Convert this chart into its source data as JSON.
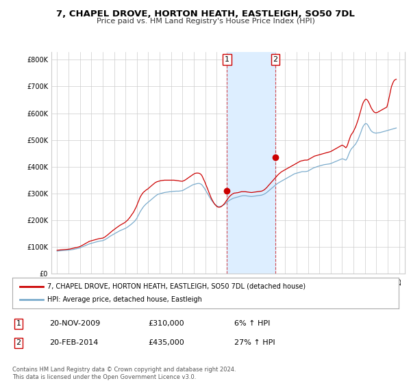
{
  "title": "7, CHAPEL DROVE, HORTON HEATH, EASTLEIGH, SO50 7DL",
  "subtitle": "Price paid vs. HM Land Registry's House Price Index (HPI)",
  "title_fontsize": 9.5,
  "subtitle_fontsize": 8,
  "ylabel_ticks": [
    "£0",
    "£100K",
    "£200K",
    "£300K",
    "£400K",
    "£500K",
    "£600K",
    "£700K",
    "£800K"
  ],
  "ytick_values": [
    0,
    100000,
    200000,
    300000,
    400000,
    500000,
    600000,
    700000,
    800000
  ],
  "ylim": [
    0,
    830000
  ],
  "xlim_start": 1994.5,
  "xlim_end": 2025.5,
  "transaction1_x": 2009.9,
  "transaction1_y": 310000,
  "transaction2_x": 2014.15,
  "transaction2_y": 435000,
  "shade_color": "#ddeeff",
  "line_color_property": "#cc0000",
  "line_color_hpi": "#7aabcc",
  "marker_color": "#cc0000",
  "marker_box_color": "#cc0000",
  "legend_label_property": "7, CHAPEL DROVE, HORTON HEATH, EASTLEIGH, SO50 7DL (detached house)",
  "legend_label_hpi": "HPI: Average price, detached house, Eastleigh",
  "table_row1": [
    "1",
    "20-NOV-2009",
    "£310,000",
    "6% ↑ HPI"
  ],
  "table_row2": [
    "2",
    "20-FEB-2014",
    "£435,000",
    "27% ↑ HPI"
  ],
  "footnote": "Contains HM Land Registry data © Crown copyright and database right 2024.\nThis data is licensed under the Open Government Licence v3.0.",
  "background_color": "#ffffff",
  "grid_color": "#cccccc",
  "hpi_monthly_x": [
    1995.0,
    1995.08,
    1995.17,
    1995.25,
    1995.33,
    1995.42,
    1995.5,
    1995.58,
    1995.67,
    1995.75,
    1995.83,
    1995.92,
    1996.0,
    1996.08,
    1996.17,
    1996.25,
    1996.33,
    1996.42,
    1996.5,
    1996.58,
    1996.67,
    1996.75,
    1996.83,
    1996.92,
    1997.0,
    1997.08,
    1997.17,
    1997.25,
    1997.33,
    1997.42,
    1997.5,
    1997.58,
    1997.67,
    1997.75,
    1997.83,
    1997.92,
    1998.0,
    1998.08,
    1998.17,
    1998.25,
    1998.33,
    1998.42,
    1998.5,
    1998.58,
    1998.67,
    1998.75,
    1998.83,
    1998.92,
    1999.0,
    1999.08,
    1999.17,
    1999.25,
    1999.33,
    1999.42,
    1999.5,
    1999.58,
    1999.67,
    1999.75,
    1999.83,
    1999.92,
    2000.0,
    2000.08,
    2000.17,
    2000.25,
    2000.33,
    2000.42,
    2000.5,
    2000.58,
    2000.67,
    2000.75,
    2000.83,
    2000.92,
    2001.0,
    2001.08,
    2001.17,
    2001.25,
    2001.33,
    2001.42,
    2001.5,
    2001.58,
    2001.67,
    2001.75,
    2001.83,
    2001.92,
    2002.0,
    2002.08,
    2002.17,
    2002.25,
    2002.33,
    2002.42,
    2002.5,
    2002.58,
    2002.67,
    2002.75,
    2002.83,
    2002.92,
    2003.0,
    2003.08,
    2003.17,
    2003.25,
    2003.33,
    2003.42,
    2003.5,
    2003.58,
    2003.67,
    2003.75,
    2003.83,
    2003.92,
    2004.0,
    2004.08,
    2004.17,
    2004.25,
    2004.33,
    2004.42,
    2004.5,
    2004.58,
    2004.67,
    2004.75,
    2004.83,
    2004.92,
    2005.0,
    2005.08,
    2005.17,
    2005.25,
    2005.33,
    2005.42,
    2005.5,
    2005.58,
    2005.67,
    2005.75,
    2005.83,
    2005.92,
    2006.0,
    2006.08,
    2006.17,
    2006.25,
    2006.33,
    2006.42,
    2006.5,
    2006.58,
    2006.67,
    2006.75,
    2006.83,
    2006.92,
    2007.0,
    2007.08,
    2007.17,
    2007.25,
    2007.33,
    2007.42,
    2007.5,
    2007.58,
    2007.67,
    2007.75,
    2007.83,
    2007.92,
    2008.0,
    2008.08,
    2008.17,
    2008.25,
    2008.33,
    2008.42,
    2008.5,
    2008.58,
    2008.67,
    2008.75,
    2008.83,
    2008.92,
    2009.0,
    2009.08,
    2009.17,
    2009.25,
    2009.33,
    2009.42,
    2009.5,
    2009.58,
    2009.67,
    2009.75,
    2009.83,
    2009.92,
    2010.0,
    2010.08,
    2010.17,
    2010.25,
    2010.33,
    2010.42,
    2010.5,
    2010.58,
    2010.67,
    2010.75,
    2010.83,
    2010.92,
    2011.0,
    2011.08,
    2011.17,
    2011.25,
    2011.33,
    2011.42,
    2011.5,
    2011.58,
    2011.67,
    2011.75,
    2011.83,
    2011.92,
    2012.0,
    2012.08,
    2012.17,
    2012.25,
    2012.33,
    2012.42,
    2012.5,
    2012.58,
    2012.67,
    2012.75,
    2012.83,
    2012.92,
    2013.0,
    2013.08,
    2013.17,
    2013.25,
    2013.33,
    2013.42,
    2013.5,
    2013.58,
    2013.67,
    2013.75,
    2013.83,
    2013.92,
    2014.0,
    2014.08,
    2014.17,
    2014.25,
    2014.33,
    2014.42,
    2014.5,
    2014.58,
    2014.67,
    2014.75,
    2014.83,
    2014.92,
    2015.0,
    2015.08,
    2015.17,
    2015.25,
    2015.33,
    2015.42,
    2015.5,
    2015.58,
    2015.67,
    2015.75,
    2015.83,
    2015.92,
    2016.0,
    2016.08,
    2016.17,
    2016.25,
    2016.33,
    2016.42,
    2016.5,
    2016.58,
    2016.67,
    2016.75,
    2016.83,
    2016.92,
    2017.0,
    2017.08,
    2017.17,
    2017.25,
    2017.33,
    2017.42,
    2017.5,
    2017.58,
    2017.67,
    2017.75,
    2017.83,
    2017.92,
    2018.0,
    2018.08,
    2018.17,
    2018.25,
    2018.33,
    2018.42,
    2018.5,
    2018.58,
    2018.67,
    2018.75,
    2018.83,
    2018.92,
    2019.0,
    2019.08,
    2019.17,
    2019.25,
    2019.33,
    2019.42,
    2019.5,
    2019.58,
    2019.67,
    2019.75,
    2019.83,
    2019.92,
    2020.0,
    2020.08,
    2020.17,
    2020.25,
    2020.33,
    2020.42,
    2020.5,
    2020.58,
    2020.67,
    2020.75,
    2020.83,
    2020.92,
    2021.0,
    2021.08,
    2021.17,
    2021.25,
    2021.33,
    2021.42,
    2021.5,
    2021.58,
    2021.67,
    2021.75,
    2021.83,
    2021.92,
    2022.0,
    2022.08,
    2022.17,
    2022.25,
    2022.33,
    2022.42,
    2022.5,
    2022.58,
    2022.67,
    2022.75,
    2022.83,
    2022.92,
    2023.0,
    2023.08,
    2023.17,
    2023.25,
    2023.33,
    2023.42,
    2023.5,
    2023.58,
    2023.67,
    2023.75,
    2023.83,
    2023.92,
    2024.0,
    2024.08,
    2024.17,
    2024.25,
    2024.33,
    2024.42,
    2024.5,
    2024.58,
    2024.67,
    2024.75
  ],
  "hpi_monthly_y": [
    85000,
    85500,
    86000,
    86200,
    86500,
    86800,
    87000,
    87200,
    87500,
    87800,
    88000,
    88300,
    88600,
    89000,
    89500,
    90000,
    90500,
    91200,
    92000,
    92800,
    93500,
    94200,
    95000,
    96000,
    97000,
    98500,
    100000,
    101500,
    103000,
    104500,
    106000,
    107500,
    109000,
    110500,
    112000,
    113000,
    114000,
    115000,
    116000,
    117000,
    118000,
    119000,
    120000,
    121000,
    122000,
    122500,
    123000,
    123500,
    124000,
    125500,
    127000,
    129000,
    131000,
    133500,
    136000,
    138500,
    141000,
    143000,
    145000,
    147000,
    149000,
    151000,
    153000,
    155000,
    157000,
    159000,
    161000,
    162500,
    164000,
    165500,
    167000,
    168500,
    170000,
    172000,
    174500,
    177000,
    179500,
    182000,
    185000,
    188000,
    191000,
    194500,
    198000,
    203000,
    208000,
    215000,
    222000,
    229000,
    235000,
    241000,
    246000,
    251000,
    255000,
    259000,
    262000,
    265000,
    268000,
    271000,
    274000,
    277000,
    280000,
    283000,
    286000,
    289000,
    292000,
    295000,
    297000,
    298000,
    299000,
    300000,
    301000,
    302000,
    303000,
    304000,
    304500,
    305000,
    305500,
    306000,
    306500,
    307000,
    307000,
    307500,
    308000,
    308500,
    308500,
    309000,
    309000,
    309000,
    309000,
    309500,
    310000,
    310500,
    311000,
    313000,
    315000,
    317000,
    319000,
    321000,
    323000,
    325000,
    327000,
    329000,
    331000,
    333000,
    334000,
    335000,
    336000,
    337000,
    337500,
    338000,
    337500,
    336000,
    334000,
    330000,
    325000,
    320000,
    314000,
    308000,
    302000,
    296000,
    290000,
    284000,
    278000,
    273000,
    268000,
    264000,
    260000,
    257000,
    254000,
    252000,
    251000,
    251000,
    252000,
    253000,
    255000,
    257000,
    259000,
    262000,
    265000,
    268000,
    271000,
    274000,
    276000,
    278000,
    280000,
    282000,
    283000,
    284000,
    285000,
    286000,
    287000,
    288000,
    289000,
    290000,
    291000,
    291500,
    292000,
    292000,
    292000,
    291500,
    291000,
    290500,
    290000,
    289500,
    289000,
    289000,
    289500,
    290000,
    290500,
    291000,
    291500,
    292000,
    292500,
    293000,
    293500,
    294000,
    295000,
    296500,
    298000,
    300000,
    302000,
    305000,
    308000,
    311000,
    314000,
    317000,
    320000,
    323000,
    326000,
    329000,
    332000,
    335000,
    337500,
    340000,
    342000,
    344000,
    346000,
    348000,
    350000,
    352000,
    354000,
    356000,
    358000,
    360000,
    362000,
    364000,
    366000,
    368000,
    370000,
    372000,
    374000,
    375000,
    376000,
    377000,
    378000,
    379000,
    380000,
    381000,
    382000,
    382000,
    382000,
    382000,
    382500,
    383000,
    384000,
    386000,
    388000,
    390000,
    392000,
    394000,
    396000,
    397000,
    398500,
    400000,
    401000,
    402000,
    403000,
    404000,
    405000,
    406000,
    407000,
    408000,
    408500,
    409000,
    409500,
    410000,
    410500,
    411000,
    412000,
    413500,
    415000,
    416500,
    418000,
    419500,
    421000,
    422500,
    424000,
    425500,
    427000,
    428500,
    430000,
    429000,
    428000,
    426000,
    425000,
    430000,
    438000,
    447000,
    456000,
    463000,
    468000,
    472000,
    476000,
    480000,
    484000,
    490000,
    496000,
    504000,
    513000,
    522000,
    532000,
    542000,
    550000,
    556000,
    560000,
    562000,
    560000,
    556000,
    550000,
    543000,
    537000,
    533000,
    530000,
    528000,
    527000,
    526000,
    526000,
    526500,
    527000,
    527500,
    528000,
    529000,
    530000,
    531000,
    532000,
    533000,
    534000,
    535000,
    536000,
    537000,
    538000,
    539000,
    540000,
    541000,
    542000,
    543000,
    544000,
    545000
  ],
  "prop_monthly_y": [
    88000,
    88500,
    89000,
    89300,
    89700,
    90000,
    90200,
    90500,
    90800,
    91000,
    91300,
    91700,
    92000,
    92500,
    93200,
    94000,
    94800,
    95700,
    96500,
    97300,
    98000,
    98800,
    99700,
    100700,
    102000,
    103500,
    105500,
    107500,
    109500,
    111500,
    113500,
    115500,
    117500,
    119500,
    121500,
    122500,
    123500,
    124500,
    125500,
    126500,
    127500,
    128500,
    129500,
    130500,
    131500,
    132000,
    132500,
    133000,
    133500,
    135000,
    137000,
    139500,
    142000,
    145000,
    148000,
    151000,
    154000,
    157000,
    160000,
    163000,
    166000,
    168500,
    171000,
    173500,
    176000,
    178500,
    181000,
    183000,
    185000,
    187000,
    189000,
    191000,
    194000,
    197000,
    200000,
    204000,
    208000,
    213000,
    218000,
    223000,
    228000,
    234000,
    241000,
    248000,
    256000,
    265000,
    274000,
    283000,
    290000,
    296000,
    301000,
    305000,
    308000,
    311000,
    314000,
    316000,
    319000,
    322000,
    325000,
    328000,
    331000,
    334000,
    337000,
    340000,
    342000,
    344000,
    345000,
    346000,
    347000,
    348000,
    348500,
    349000,
    349500,
    350000,
    350000,
    350000,
    350000,
    350000,
    350000,
    350000,
    350000,
    350000,
    350000,
    350000,
    349500,
    349000,
    348500,
    348000,
    347500,
    347000,
    346500,
    346000,
    346000,
    347500,
    349000,
    351000,
    353500,
    356000,
    358500,
    361000,
    363500,
    366000,
    368500,
    371000,
    373000,
    375000,
    376000,
    376500,
    376500,
    376000,
    375000,
    373000,
    369000,
    363000,
    355000,
    347000,
    339000,
    330000,
    321000,
    312000,
    303000,
    294000,
    285000,
    278000,
    271000,
    265000,
    260000,
    256000,
    252000,
    250000,
    249000,
    249000,
    250000,
    252000,
    255000,
    258000,
    262000,
    267000,
    272000,
    277000,
    282000,
    287000,
    291000,
    294000,
    297000,
    299000,
    301000,
    302000,
    302000,
    303000,
    303000,
    304000,
    305000,
    306000,
    307000,
    307000,
    307000,
    307000,
    307000,
    306500,
    306000,
    305500,
    305000,
    304500,
    304000,
    304000,
    304500,
    305000,
    305500,
    306000,
    306500,
    307000,
    307500,
    308000,
    308500,
    309000,
    310000,
    312000,
    314000,
    317000,
    320000,
    324000,
    328000,
    332000,
    336000,
    340000,
    344000,
    348000,
    352000,
    356000,
    360000,
    364000,
    368000,
    372000,
    375000,
    378000,
    381000,
    383000,
    385000,
    387000,
    389000,
    391000,
    393000,
    395000,
    397000,
    399000,
    401000,
    403000,
    405000,
    407000,
    409000,
    411000,
    413000,
    415000,
    417000,
    419000,
    421000,
    422000,
    423000,
    424000,
    424500,
    425000,
    425000,
    425000,
    426000,
    428000,
    430000,
    432000,
    434000,
    436000,
    438000,
    440000,
    441000,
    442000,
    443000,
    444000,
    445000,
    446000,
    447000,
    448000,
    449000,
    450000,
    451000,
    452000,
    453000,
    454000,
    455000,
    456000,
    457000,
    459000,
    461000,
    463000,
    465000,
    467000,
    469000,
    471000,
    473000,
    475000,
    477000,
    479000,
    481000,
    479000,
    477000,
    474000,
    471000,
    476000,
    485000,
    496000,
    507000,
    516000,
    522000,
    527000,
    533000,
    540000,
    548000,
    557000,
    567000,
    578000,
    590000,
    603000,
    616000,
    628000,
    638000,
    645000,
    650000,
    653000,
    651000,
    647000,
    641000,
    633000,
    625000,
    618000,
    612000,
    607000,
    604000,
    602000,
    602000,
    603000,
    605000,
    607000,
    609000,
    611000,
    613000,
    615000,
    617000,
    619000,
    621000,
    623000,
    635000,
    650000,
    668000,
    685000,
    700000,
    710000,
    718000,
    723000,
    726000,
    727000
  ]
}
